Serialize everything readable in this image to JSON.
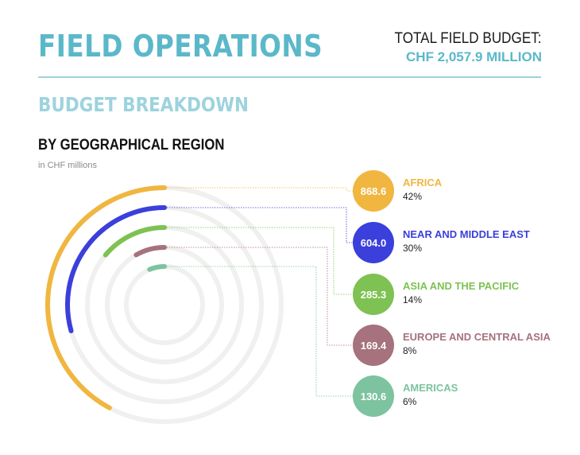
{
  "header": {
    "title": "FIELD OPERATIONS",
    "budget_label": "TOTAL FIELD BUDGET:",
    "budget_value": "CHF 2,057.9 MILLION",
    "subtitle": "BUDGET BREAKDOWN",
    "section_title": "BY GEOGRAPHICAL REGION",
    "units": "in CHF millions"
  },
  "colors": {
    "accent": "#5BB8C9",
    "subtitle": "#9DD3DE",
    "track": "#F0F0EE"
  },
  "chart_data": {
    "type": "radial_bar",
    "total": 2057.9,
    "series": [
      {
        "name": "AFRICA",
        "value": 868.6,
        "value_label": "868.6",
        "share": "42%",
        "color": "#F0B63F"
      },
      {
        "name": "NEAR AND MIDDLE EAST",
        "value": 604.0,
        "value_label": "604.0",
        "share": "30%",
        "color": "#3B3FDB"
      },
      {
        "name": "ASIA AND THE PACIFIC",
        "value": 285.3,
        "value_label": "285.3",
        "share": "14%",
        "color": "#7DC252"
      },
      {
        "name": "EUROPE AND CENTRAL ASIA",
        "value": 169.4,
        "value_label": "169.4",
        "share": "8%",
        "color": "#A5727D"
      },
      {
        "name": "AMERICAS",
        "value": 130.6,
        "value_label": "130.6",
        "share": "6%",
        "color": "#7DC3A0"
      }
    ]
  }
}
